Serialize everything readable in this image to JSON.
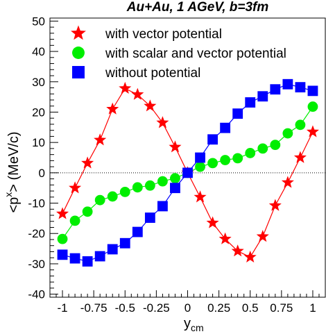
{
  "chart_data": {
    "type": "line",
    "title": "Au+Au, 1 AGeV, b=3fm",
    "xlabel": {
      "main": "y",
      "sub": "cm"
    },
    "ylabel": {
      "prefix": "<p",
      "sup": "x",
      "suffix": "> (MeV/c)"
    },
    "xlim": [
      -1.1,
      1.1
    ],
    "ylim": [
      -41,
      51
    ],
    "xticks": [
      -1,
      -0.75,
      -0.5,
      -0.25,
      0,
      0.25,
      0.5,
      0.75,
      1
    ],
    "xtick_labels": [
      "-1",
      "-0.75",
      "-0.5",
      "-0.25",
      "0",
      "0.25",
      "0.5",
      "0.75",
      "1"
    ],
    "yticks": [
      -40,
      -30,
      -20,
      -10,
      0,
      10,
      20,
      30,
      40,
      50
    ],
    "ytick_labels": [
      "-40",
      "-30",
      "-20",
      "-10",
      "0",
      "10",
      "20",
      "30",
      "40",
      "50"
    ],
    "zero_line": true,
    "grid": false,
    "legend_position": "top",
    "series": [
      {
        "name": "with vector potential",
        "marker": "star",
        "color": "#ff0000",
        "x": [
          -1.0,
          -0.9,
          -0.8,
          -0.7,
          -0.6,
          -0.5,
          -0.4,
          -0.3,
          -0.2,
          -0.1,
          0.0,
          0.1,
          0.2,
          0.3,
          0.4,
          0.5,
          0.6,
          0.7,
          0.8,
          0.9,
          1.0
        ],
        "y": [
          -13.5,
          -5,
          3.2,
          10.8,
          21,
          27.8,
          25.8,
          22,
          16.5,
          8.5,
          0,
          -8,
          -16.5,
          -21.8,
          -25.8,
          -27.8,
          -21,
          -10.8,
          -3.2,
          5,
          13.5
        ]
      },
      {
        "name": "with scalar and vector potential",
        "marker": "circle",
        "color": "#00ee00",
        "x": [
          -1.0,
          -0.9,
          -0.8,
          -0.7,
          -0.6,
          -0.5,
          -0.4,
          -0.3,
          -0.2,
          -0.1,
          0.0,
          0.1,
          0.2,
          0.3,
          0.4,
          0.5,
          0.6,
          0.7,
          0.8,
          0.9,
          1.0
        ],
        "y": [
          -21.8,
          -15.8,
          -12.8,
          -9,
          -7.8,
          -6.3,
          -4.8,
          -4.2,
          -2.8,
          -1.8,
          0,
          2,
          3.2,
          4.2,
          4.8,
          6.5,
          8,
          9.2,
          13,
          15.8,
          21.8
        ]
      },
      {
        "name": "without potential",
        "marker": "square",
        "color": "#0000ff",
        "x": [
          -1.0,
          -0.9,
          -0.8,
          -0.7,
          -0.6,
          -0.5,
          -0.4,
          -0.3,
          -0.2,
          -0.1,
          0.0,
          0.1,
          0.2,
          0.3,
          0.4,
          0.5,
          0.6,
          0.7,
          0.8,
          0.9,
          1.0
        ],
        "y": [
          -27,
          -28.2,
          -29.2,
          -27.5,
          -25.2,
          -23.2,
          -19.5,
          -14.8,
          -11,
          -5,
          0,
          5,
          11,
          14.8,
          19.5,
          23.2,
          25.2,
          27.5,
          29.2,
          28.2,
          27
        ]
      }
    ]
  }
}
